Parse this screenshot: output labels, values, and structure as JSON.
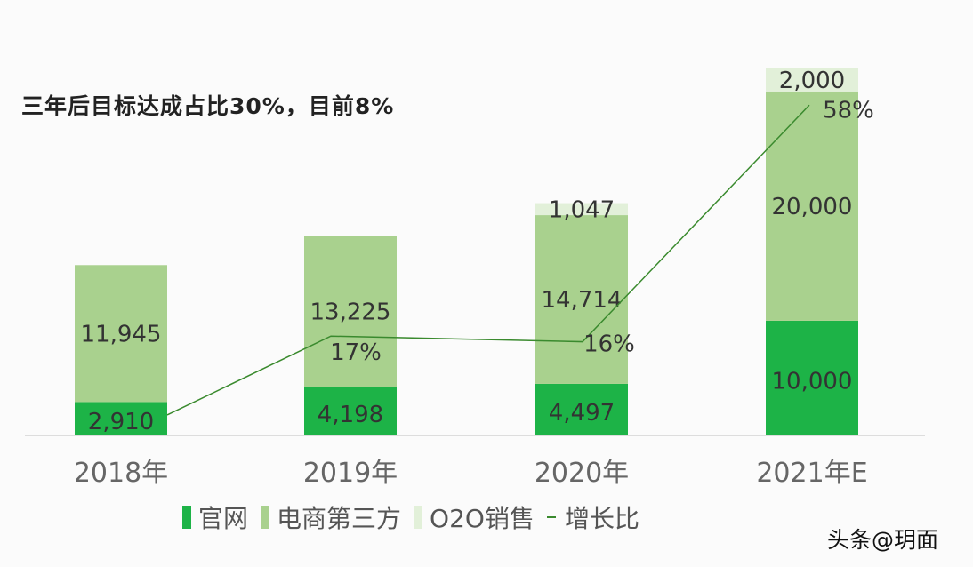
{
  "chart_data": {
    "type": "bar",
    "stacked": true,
    "title": "三年后目标达成占比30%，目前8%",
    "categories": [
      "2018年",
      "2019年",
      "2020年",
      "2021年E"
    ],
    "series": [
      {
        "name": "官网",
        "values": [
          2910,
          4198,
          4497,
          10000
        ],
        "labels": [
          "2,910",
          "4,198",
          "4,497",
          "10,000"
        ],
        "color": "#1db347"
      },
      {
        "name": "电商第三方",
        "values": [
          11945,
          13225,
          14714,
          20000
        ],
        "labels": [
          "11,945",
          "13,225",
          "14,714",
          "20,000"
        ],
        "color": "#a9d18e"
      },
      {
        "name": "O2O销售",
        "values": [
          0,
          0,
          1047,
          2000
        ],
        "labels": [
          "",
          "",
          "1,047",
          "2,000"
        ],
        "color": "#e2f0d9"
      }
    ],
    "line": {
      "name": "增长比",
      "type": "line",
      "values": [
        3,
        17,
        16,
        58
      ],
      "labels": [
        "",
        "17%",
        "16%",
        "58%"
      ],
      "color": "#3a8a2e"
    },
    "ylim": [
      0,
      32000
    ],
    "grid": false,
    "legend_position": "bottom"
  },
  "watermark": "头条@玥面"
}
